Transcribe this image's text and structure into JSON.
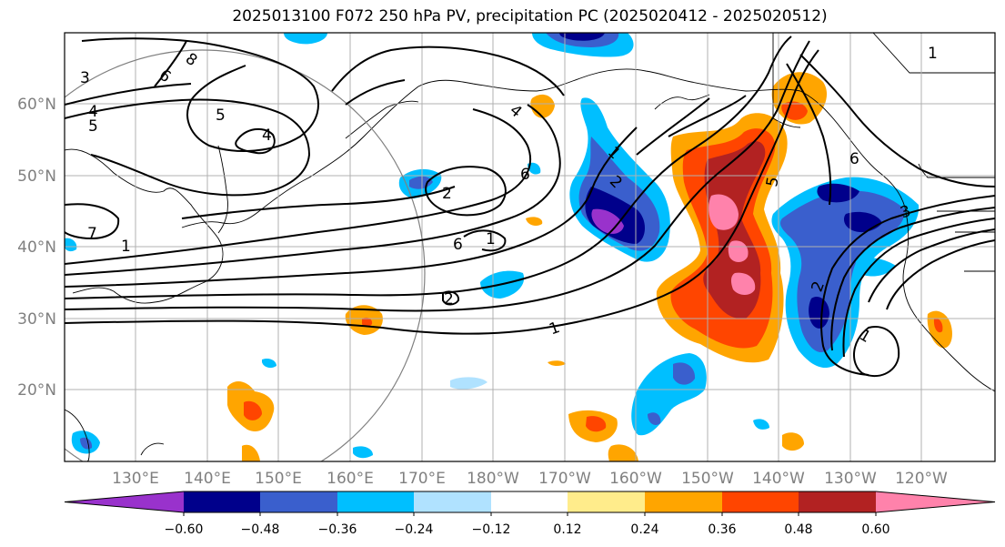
{
  "title": "2025013100 F072 250 hPa PV, precipitation PC (2025020412 - 2025020512)",
  "lat_labels": [
    "60°N",
    "50°N",
    "40°N",
    "30°N",
    "20°N"
  ],
  "lon_labels": [
    "130°E",
    "140°E",
    "150°E",
    "160°E",
    "170°E",
    "180°W",
    "170°W",
    "160°W",
    "150°W",
    "140°W",
    "130°W",
    "120°W"
  ],
  "colorbar": {
    "ticks": [
      "−0.60",
      "−0.48",
      "−0.36",
      "−0.24",
      "−0.12",
      "0.12",
      "0.24",
      "0.36",
      "0.48",
      "0.60"
    ],
    "colors": [
      "#9932cc",
      "#00008b",
      "#3a5fcd",
      "#00bfff",
      "#b0e2ff",
      "#ffffff",
      "#ffec8b",
      "#ffa500",
      "#ff4500",
      "#b22222",
      "#ff82ab"
    ]
  },
  "contour_labels": [
    "3",
    "8",
    "6",
    "4",
    "5",
    "4",
    "5",
    "7",
    "1",
    "4",
    "2",
    "1",
    "6",
    "2",
    "6",
    "1",
    "1",
    "2",
    "5",
    "1",
    "6",
    "2",
    "1",
    "3"
  ]
}
